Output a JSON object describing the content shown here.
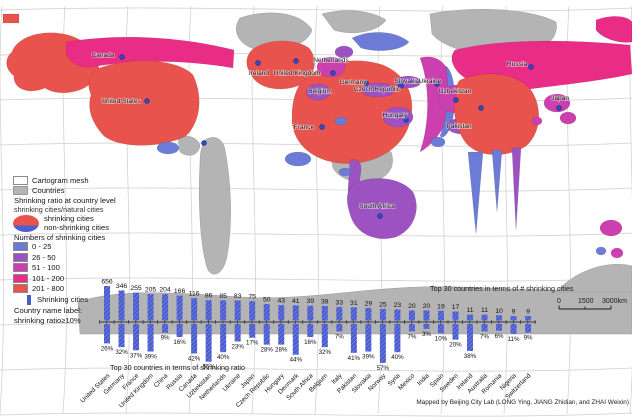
{
  "map": {
    "legend": {
      "cartogram_mesh": "Cartogram mesh",
      "countries": "Countries",
      "ratio_title": "Shrinking ratio at country level",
      "ratio_sub": "shrinking cities/natural cities",
      "pie_shrinking": "shrinking cities",
      "pie_non_shrinking": "non-shrinking cities",
      "numbers_title": "Numbers of shrinking cities",
      "classes": [
        {
          "range": "0 - 25",
          "color": "#6b7bd6"
        },
        {
          "range": "26 - 50",
          "color": "#9c52c0"
        },
        {
          "range": "51 - 100",
          "color": "#cc3fae"
        },
        {
          "range": "101 - 200",
          "color": "#e92c86"
        },
        {
          "range": "201 - 800",
          "color": "#e9534e"
        }
      ],
      "bar_symbol_label": "Shrinking cities",
      "country_label_line1": "Country name label:",
      "country_label_line2": "shrinking ratio≥10%"
    },
    "country_labels": [
      "Canada",
      "United States",
      "Ireland",
      "United Kingdom",
      "Netherlands",
      "Germany",
      "Belgium",
      "Czech Republic",
      "Slovakia",
      "Ukraine",
      "Hungary",
      "France",
      "Uzbekistan",
      "Russia",
      "Pakistan",
      "Japan",
      "South Africa"
    ],
    "scale_bar": {
      "zero": "0",
      "mid": "1500",
      "end": "3000km"
    },
    "credit": "Mapped by Beijing City Lab (LONG Ying, JIANG Zhidian, and ZHAI Weixin)"
  },
  "colors": {
    "class_0_25": "#6b7bd6",
    "class_26_50": "#9c52c0",
    "class_51_100": "#cc3fae",
    "class_101_200": "#e92c86",
    "class_201_800": "#e9534e",
    "bar_blue": "#4a5bd0",
    "land_gray": "#b4b4b4",
    "mesh_gray": "#cccccc"
  },
  "chart_data": {
    "type": "bar",
    "caption_counts": "Top 30 countries in terms of # shrinking cities",
    "caption_ratio": "Top 30 countries in terms of shrinking ratio",
    "categories": [
      "United States",
      "Germany",
      "France",
      "United Kingdom",
      "China",
      "Russia",
      "Canada",
      "Uzbekistan",
      "Netherlands",
      "Ukraine",
      "Japan",
      "Czech Republic",
      "Hungary",
      "Denmark",
      "South Africa",
      "Belgium",
      "Italy",
      "Pakistan",
      "Slovakia",
      "Norway",
      "Syria",
      "Mexico",
      "India",
      "Spain",
      "Sweden",
      "Ireland",
      "Australia",
      "Romania",
      "Nigeria",
      "Switzerland"
    ],
    "series": [
      {
        "name": "number of shrinking cities",
        "values": [
          656,
          346,
          255,
          205,
          204,
          166,
          116,
          86,
          85,
          83,
          75,
          50,
          43,
          41,
          39,
          38,
          33,
          31,
          29,
          25,
          23,
          20,
          20,
          19,
          17,
          11,
          11,
          10,
          9,
          9
        ]
      },
      {
        "name": "shrinking ratio %",
        "values": [
          26,
          32,
          37,
          39,
          9,
          16,
          42,
          55,
          40,
          23,
          17,
          28,
          28,
          44,
          16,
          32,
          7,
          41,
          39,
          57,
          40,
          7,
          3,
          10,
          20,
          38,
          7,
          6,
          11,
          9
        ]
      }
    ],
    "grid": false,
    "legend_position": "none"
  }
}
